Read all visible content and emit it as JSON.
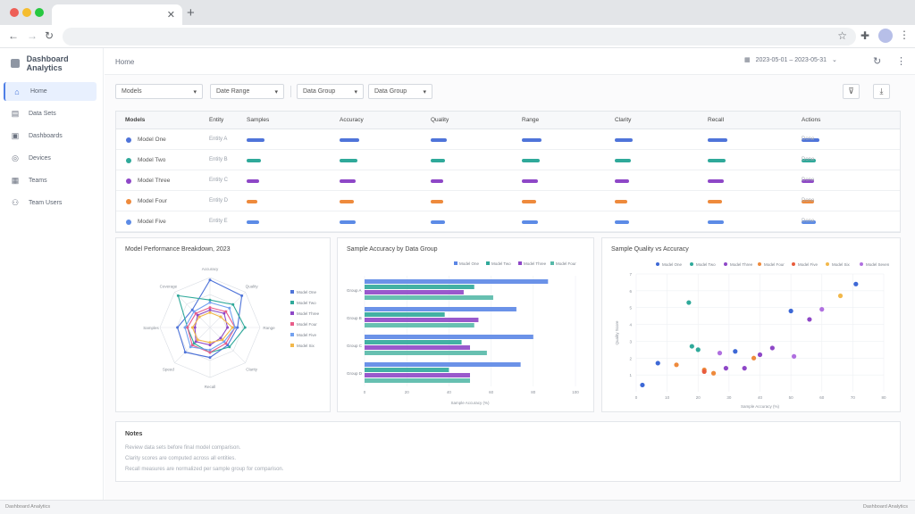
{
  "browser": {
    "tab_title": "",
    "close_icon": "close-icon",
    "new_tab_icon": "plus-icon",
    "url": "",
    "colors": {
      "red": "#ee5f57",
      "yellow": "#f5bd2f",
      "green": "#27c840"
    }
  },
  "sidebar": {
    "brand": "Dashboard Analytics",
    "items": [
      {
        "label": "Home",
        "icon": "home-icon",
        "active": true
      },
      {
        "label": "Data Sets",
        "icon": "document-icon",
        "active": false
      },
      {
        "label": "Dashboards",
        "icon": "layout-icon",
        "active": false
      },
      {
        "label": "Devices",
        "icon": "device-icon",
        "active": false
      },
      {
        "label": "Teams",
        "icon": "grid-icon",
        "active": false
      },
      {
        "label": "Team Users",
        "icon": "users-icon",
        "active": false
      }
    ]
  },
  "header": {
    "title": "Home",
    "date_range": "2023-05-01 – 2023-05-31",
    "calendar_icon": "calendar-icon",
    "refresh_icon": "refresh-icon",
    "more_icon": "more-icon"
  },
  "filters": [
    {
      "value": "Models"
    },
    {
      "value": "Date Range"
    },
    {
      "value": "Data Group"
    },
    {
      "value": "Data Group"
    }
  ],
  "actions": {
    "filter_icon": "filter-icon",
    "download_icon": "download-icon"
  },
  "table": {
    "headers": [
      "Models",
      "Entity",
      "Samples",
      "Accuracy",
      "Quality",
      "Range",
      "Clarity",
      "Recall",
      "Actions"
    ],
    "rows": [
      {
        "model": "Model One",
        "color": "#4f74d9",
        "entity": "Entity A",
        "status": "Done",
        "fills": [
          0.5,
          0.55,
          0.45,
          0.55,
          0.5,
          0.55,
          0.5
        ]
      },
      {
        "model": "Model Two",
        "color": "#2fa99a",
        "entity": "Entity B",
        "status": "Done",
        "fills": [
          0.4,
          0.5,
          0.4,
          0.5,
          0.45,
          0.5,
          0.4
        ]
      },
      {
        "model": "Model Three",
        "color": "#8e47c7",
        "entity": "Entity C",
        "status": "Done",
        "fills": [
          0.35,
          0.45,
          0.35,
          0.45,
          0.4,
          0.45,
          0.35
        ]
      },
      {
        "model": "Model Four",
        "color": "#ee8a3c",
        "entity": "Entity D",
        "status": "Done",
        "fills": [
          0.3,
          0.4,
          0.35,
          0.4,
          0.35,
          0.4,
          0.35
        ]
      },
      {
        "model": "Model Five",
        "color": "#5c8be6",
        "entity": "Entity E",
        "status": "Done",
        "fills": [
          0.35,
          0.45,
          0.4,
          0.45,
          0.4,
          0.45,
          0.4
        ]
      }
    ]
  },
  "notes": {
    "title": "Notes",
    "items": [
      "Review data sets before final model comparison.",
      "Clarity scores are computed across all entities.",
      "Recall measures are normalized per sample group for comparison."
    ]
  },
  "statusbar": {
    "left": "Dashboard Analytics",
    "right": "Dashboard Analytics"
  },
  "chart_data": [
    {
      "type": "radar",
      "title": "Model Performance Breakdown, 2023",
      "axes": [
        "Accuracy",
        "Quality",
        "Range",
        "Clarity",
        "Recall",
        "Speed",
        "Samples",
        "Coverage"
      ],
      "series": [
        {
          "name": "Model One",
          "color": "#4f74d9",
          "values": [
            0.95,
            0.9,
            0.55,
            0.5,
            0.6,
            0.7,
            0.65,
            0.5
          ]
        },
        {
          "name": "Model Two",
          "color": "#2fa99a",
          "values": [
            0.55,
            0.65,
            0.7,
            0.55,
            0.5,
            0.45,
            0.45,
            0.9
          ]
        },
        {
          "name": "Model Three",
          "color": "#8e47c7",
          "values": [
            0.35,
            0.4,
            0.35,
            0.3,
            0.35,
            0.4,
            0.3,
            0.35
          ]
        },
        {
          "name": "Model Four",
          "color": "#e85c89",
          "values": [
            0.4,
            0.45,
            0.5,
            0.45,
            0.5,
            0.5,
            0.45,
            0.4
          ]
        },
        {
          "name": "Model Five",
          "color": "#73a1f0",
          "values": [
            0.5,
            0.55,
            0.5,
            0.4,
            0.45,
            0.55,
            0.5,
            0.45
          ]
        },
        {
          "name": "Model Six",
          "color": "#f2b84b",
          "values": [
            0.3,
            0.3,
            0.45,
            0.35,
            0.3,
            0.35,
            0.35,
            0.3
          ]
        }
      ]
    },
    {
      "type": "bar",
      "title": "Sample Accuracy by Data Group",
      "orientation": "horizontal",
      "categories": [
        "Group A",
        "Group B",
        "Group C",
        "Group D"
      ],
      "series": [
        {
          "name": "Model One",
          "color": "#5b86e5",
          "values": [
            87,
            72,
            80,
            74
          ]
        },
        {
          "name": "Model Two",
          "color": "#2fa99a",
          "values": [
            52,
            38,
            46,
            40
          ]
        },
        {
          "name": "Model Three",
          "color": "#8e47c7",
          "values": [
            47,
            54,
            50,
            50
          ]
        },
        {
          "name": "Model Four",
          "color": "#57b9a9",
          "values": [
            61,
            52,
            58,
            50
          ]
        }
      ],
      "xlim": [
        0,
        100
      ],
      "xticks": [
        "0",
        "20",
        "40",
        "60",
        "80",
        "100"
      ],
      "xlabel": "Sample Accuracy (%)"
    },
    {
      "type": "scatter",
      "title": "Sample Quality vs Accuracy",
      "xlabel": "Sample Accuracy (%)",
      "ylabel": "Quality Score",
      "xlim": [
        0,
        80
      ],
      "ylim": [
        0,
        7
      ],
      "xticks": [
        "0",
        "10",
        "20",
        "30",
        "40",
        "50",
        "60",
        "70",
        "80"
      ],
      "yticks": [
        "1",
        "2",
        "3",
        "4",
        "5",
        "6",
        "7"
      ],
      "series": [
        {
          "name": "Model One",
          "color": "#3d68d6",
          "points": [
            [
              2,
              0.4
            ],
            [
              7,
              1.7
            ],
            [
              32,
              2.4
            ],
            [
              50,
              4.8
            ],
            [
              71,
              6.4
            ]
          ]
        },
        {
          "name": "Model Two",
          "color": "#2fa99a",
          "points": [
            [
              17,
              5.3
            ],
            [
              18,
              2.7
            ],
            [
              20,
              2.5
            ]
          ]
        },
        {
          "name": "Model Three",
          "color": "#8e47c7",
          "points": [
            [
              29,
              1.4
            ],
            [
              35,
              1.4
            ],
            [
              40,
              2.2
            ],
            [
              44,
              2.6
            ],
            [
              56,
              4.3
            ]
          ]
        },
        {
          "name": "Model Four",
          "color": "#ee8a3c",
          "points": [
            [
              13,
              1.6
            ],
            [
              22,
              1.3
            ],
            [
              25,
              1.1
            ],
            [
              38,
              2.0
            ]
          ]
        },
        {
          "name": "Model Five",
          "color": "#e85c3c",
          "points": [
            [
              22,
              1.2
            ]
          ]
        },
        {
          "name": "Model Six",
          "color": "#f2b84b",
          "points": [
            [
              66,
              5.7
            ]
          ]
        },
        {
          "name": "Model Seven",
          "color": "#b070e0",
          "points": [
            [
              27,
              2.3
            ],
            [
              51,
              2.1
            ],
            [
              60,
              4.9
            ]
          ]
        }
      ]
    }
  ]
}
